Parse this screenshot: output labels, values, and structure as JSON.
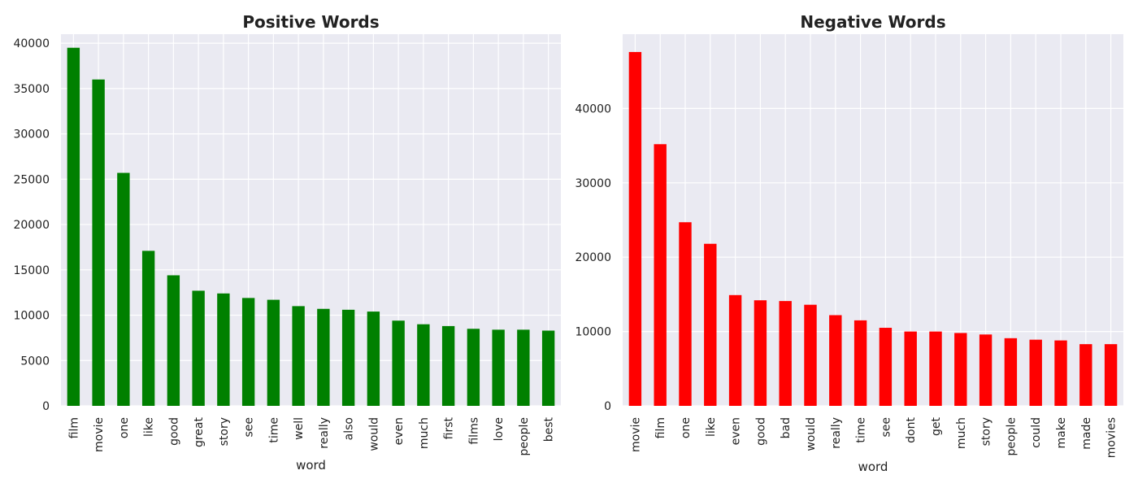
{
  "chart_data": [
    {
      "type": "bar",
      "title": "Positive Words",
      "xlabel": "word",
      "ylabel": "",
      "color": "#008000",
      "background": "#EAEAF2",
      "grid": true,
      "ylim": [
        0,
        41000
      ],
      "yticks": [
        0,
        5000,
        10000,
        15000,
        20000,
        25000,
        30000,
        35000,
        40000
      ],
      "categories": [
        "film",
        "movie",
        "one",
        "like",
        "good",
        "great",
        "story",
        "see",
        "time",
        "well",
        "really",
        "also",
        "would",
        "even",
        "much",
        "first",
        "films",
        "love",
        "people",
        "best"
      ],
      "values": [
        39500,
        36000,
        25700,
        17100,
        14400,
        12700,
        12400,
        11900,
        11700,
        11000,
        10700,
        10600,
        10400,
        9400,
        9000,
        8800,
        8500,
        8400,
        8400,
        8300
      ]
    },
    {
      "type": "bar",
      "title": "Negative Words",
      "xlabel": "word",
      "ylabel": "",
      "color": "#FF0000",
      "background": "#EAEAF2",
      "grid": true,
      "ylim": [
        0,
        50000
      ],
      "yticks": [
        0,
        10000,
        20000,
        30000,
        40000
      ],
      "categories": [
        "movie",
        "film",
        "one",
        "like",
        "even",
        "good",
        "bad",
        "would",
        "really",
        "time",
        "see",
        "dont",
        "get",
        "much",
        "story",
        "people",
        "could",
        "make",
        "made",
        "movies"
      ],
      "values": [
        47600,
        35200,
        24700,
        21800,
        14900,
        14200,
        14100,
        13600,
        12200,
        11500,
        10500,
        10000,
        10000,
        9800,
        9600,
        9100,
        8900,
        8800,
        8300,
        8300
      ]
    }
  ]
}
